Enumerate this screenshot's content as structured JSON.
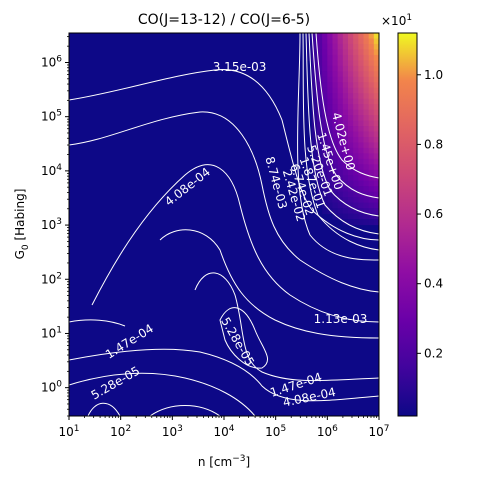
{
  "chart_data": {
    "type": "heatmap",
    "title": "CO(J=13-12) / CO(J=6-5)",
    "xlabel": "n [cm",
    "xlabel_sup": "−3",
    "xlabel_close": "]",
    "ylabel": "G",
    "ylabel_sub": "0",
    "ylabel_rest": " [Habing]",
    "xscale": "log",
    "yscale": "log",
    "xlim": [
      10,
      10000000
    ],
    "ylim": [
      0.3,
      3500000
    ],
    "x_ticks": [
      {
        "value": 10,
        "base": "10",
        "exp": "1"
      },
      {
        "value": 100,
        "base": "10",
        "exp": "2"
      },
      {
        "value": 1000,
        "base": "10",
        "exp": "3"
      },
      {
        "value": 10000,
        "base": "10",
        "exp": "4"
      },
      {
        "value": 100000,
        "base": "10",
        "exp": "5"
      },
      {
        "value": 1000000,
        "base": "10",
        "exp": "6"
      },
      {
        "value": 10000000,
        "base": "10",
        "exp": "7"
      }
    ],
    "y_ticks": [
      {
        "value": 1,
        "base": "10",
        "exp": "0"
      },
      {
        "value": 10,
        "base": "10",
        "exp": "1"
      },
      {
        "value": 100,
        "base": "10",
        "exp": "2"
      },
      {
        "value": 1000,
        "base": "10",
        "exp": "3"
      },
      {
        "value": 10000,
        "base": "10",
        "exp": "4"
      },
      {
        "value": 100000,
        "base": "10",
        "exp": "5"
      },
      {
        "value": 1000000,
        "base": "10",
        "exp": "6"
      }
    ],
    "colormap": "plasma",
    "colorbar": {
      "min": 0.02,
      "max": 1.12,
      "multiplier_base": "×10",
      "multiplier_exp": "1",
      "ticks": [
        "0.2",
        "0.4",
        "0.6",
        "0.8",
        "1.0"
      ],
      "tick_values": [
        0.2,
        0.4,
        0.6,
        0.8,
        1.0
      ]
    },
    "contour_color": "#ffffff",
    "contour_labels": [
      {
        "text": "3.15e-03",
        "x": 20000,
        "y": 800000,
        "angle": 0
      },
      {
        "text": "4.02e+00",
        "x": 2000000,
        "y": 35000,
        "angle": 75
      },
      {
        "text": "1.45e+00",
        "x": 1100000,
        "y": 15000,
        "angle": 72
      },
      {
        "text": "5.20e-01",
        "x": 700000,
        "y": 10000,
        "angle": 70
      },
      {
        "text": "1.87e-01",
        "x": 500000,
        "y": 6000,
        "angle": 70
      },
      {
        "text": "6.74e-02",
        "x": 320000,
        "y": 4500,
        "angle": 72
      },
      {
        "text": "2.42e-02",
        "x": 220000,
        "y": 3500,
        "angle": 74
      },
      {
        "text": "8.74e-03",
        "x": 100000,
        "y": 6000,
        "angle": 75
      },
      {
        "text": "4.08e-04",
        "x": 2000,
        "y": 5000,
        "angle": -38
      },
      {
        "text": "1.13e-03",
        "x": 1800000,
        "y": 18,
        "angle": 0
      },
      {
        "text": "5.28e-05",
        "x": 18000,
        "y": 7,
        "angle": 60
      },
      {
        "text": "1.47e-04",
        "x": 150,
        "y": 7,
        "angle": -32
      },
      {
        "text": "5.28e-05",
        "x": 80,
        "y": 1.2,
        "angle": -30
      },
      {
        "text": "1.47e-04",
        "x": 250000,
        "y": 1.1,
        "angle": -18
      },
      {
        "text": "4.08e-04",
        "x": 450000,
        "y": 0.65,
        "angle": -12
      }
    ]
  }
}
